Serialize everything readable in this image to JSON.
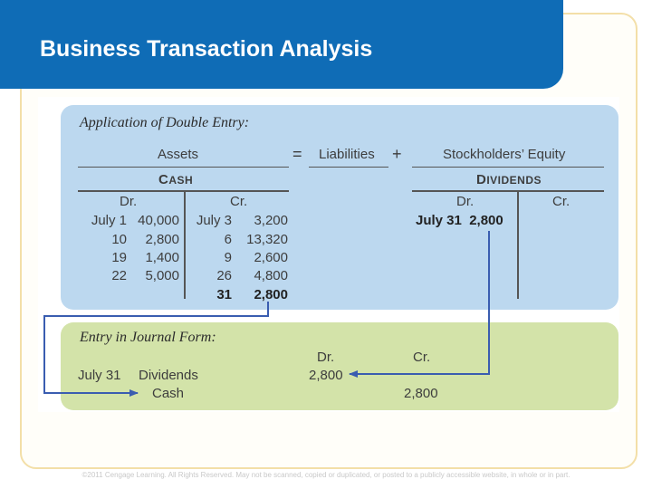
{
  "slide": {
    "title": "Business Transaction Analysis"
  },
  "double_entry": {
    "heading": "Application of Double Entry:",
    "equation": {
      "assets": "Assets",
      "equals": "=",
      "liabilities": "Liabilities",
      "plus": "+",
      "equity": "Stockholders’ Equity"
    },
    "cash_account": {
      "title_first": "C",
      "title_rest": "ASH",
      "dr_label": "Dr.",
      "cr_label": "Cr.",
      "debits": [
        {
          "label": "July 1",
          "amount": "40,000"
        },
        {
          "label": "10",
          "amount": "2,800"
        },
        {
          "label": "19",
          "amount": "1,400"
        },
        {
          "label": "22",
          "amount": "5,000"
        }
      ],
      "credits": [
        {
          "label": "July 3",
          "amount": "3,200"
        },
        {
          "label": "6",
          "amount": "13,320"
        },
        {
          "label": "9",
          "amount": "2,600"
        },
        {
          "label": "26",
          "amount": "4,800"
        },
        {
          "label": "31",
          "amount": "2,800"
        }
      ]
    },
    "dividends_account": {
      "title_first": "D",
      "title_rest": "IVIDENDS",
      "dr_label": "Dr.",
      "cr_label": "Cr.",
      "debit_entry": "July 31  2,800"
    }
  },
  "journal": {
    "heading": "Entry in Journal Form:",
    "dr_label": "Dr.",
    "cr_label": "Cr.",
    "date": "July 31",
    "debit_account": "Dividends",
    "credit_account": "Cash",
    "debit_amount": "2,800",
    "credit_amount": "2,800"
  },
  "footer": {
    "text": "©2011 Cengage Learning. All Rights Reserved. May not be scanned, copied or duplicated, or posted to a publicly accessible website, in whole or in part."
  },
  "colors": {
    "title_bar": "#0f6cb6",
    "blue_panel": "#bcd8ef",
    "green_panel": "#d3e3a9",
    "arrow": "#3a5db0"
  }
}
